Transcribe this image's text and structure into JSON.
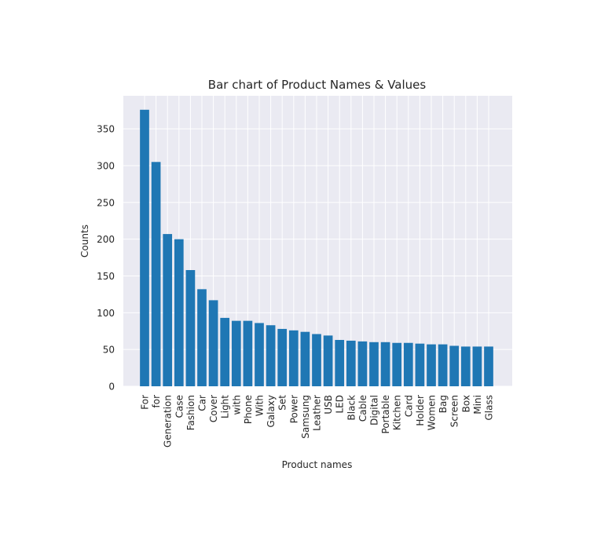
{
  "chart_data": {
    "type": "bar",
    "title": "Bar chart of Product Names & Values",
    "xlabel": "Product names",
    "ylabel": "Counts",
    "ylim": [
      0,
      395
    ],
    "yticks": [
      0,
      50,
      100,
      150,
      200,
      250,
      300,
      350
    ],
    "grid": true,
    "bar_color": "#1f77b4",
    "background_color": "#eaeaf2",
    "categories": [
      "For",
      "for",
      "Generation",
      "Case",
      "Fashion",
      "Car",
      "Cover",
      "Light",
      "with",
      "Phone",
      "With",
      "Galaxy",
      "Set",
      "Power",
      "Samsung",
      "Leather",
      "USB",
      "LED",
      "Black",
      "Cable",
      "Digital",
      "Portable",
      "Kitchen",
      "Card",
      "Holder",
      "Women",
      "Bag",
      "Screen",
      "Box",
      "Mini",
      "Glass"
    ],
    "values": [
      376,
      305,
      207,
      200,
      158,
      132,
      117,
      93,
      89,
      89,
      86,
      83,
      78,
      76,
      74,
      71,
      69,
      63,
      62,
      61,
      60,
      60,
      59,
      59,
      58,
      57,
      57,
      55,
      54,
      54,
      54
    ]
  }
}
